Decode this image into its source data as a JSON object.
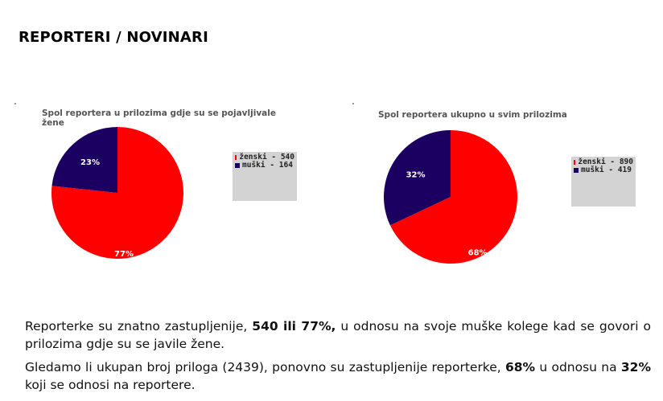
{
  "page": {
    "title": "REPORTERI / NOVINARI"
  },
  "chart_data": [
    {
      "type": "pie",
      "title": "Spol reportera u prilozima gdje su se pojavljivale žene",
      "categories": [
        "ženski",
        "muški"
      ],
      "values": [
        540,
        164
      ],
      "percent_labels": [
        "77%",
        "23%"
      ],
      "legend_entries": [
        "ženski - 540",
        "muški - 164"
      ],
      "colors": [
        "#ff0000",
        "#1c0061"
      ],
      "legend_position": "right"
    },
    {
      "type": "pie",
      "title": "Spol reportera ukupno u svim prilozima",
      "categories": [
        "ženski",
        "muški"
      ],
      "values": [
        890,
        419
      ],
      "percent_labels": [
        "68%",
        "32%"
      ],
      "legend_entries": [
        "ženski - 890",
        "muški - 419"
      ],
      "colors": [
        "#ff0000",
        "#1c0061"
      ],
      "legend_position": "right"
    }
  ],
  "text": {
    "p1": {
      "pre": "Reporterke su znatno zastupljenije, ",
      "bold": "540 ili 77%,",
      "post": " u odnosu na svoje muške kolege kad se govori o prilozima gdje su se javile žene."
    },
    "p2": {
      "pre": "Gledamo li ukupan broj priloga (2439), ponovno su zastupljenije reporterke, ",
      "bold1": "68%",
      "mid": " u odnosu na ",
      "bold2": "32%",
      "post": " koji se odnosi na reportere."
    }
  }
}
